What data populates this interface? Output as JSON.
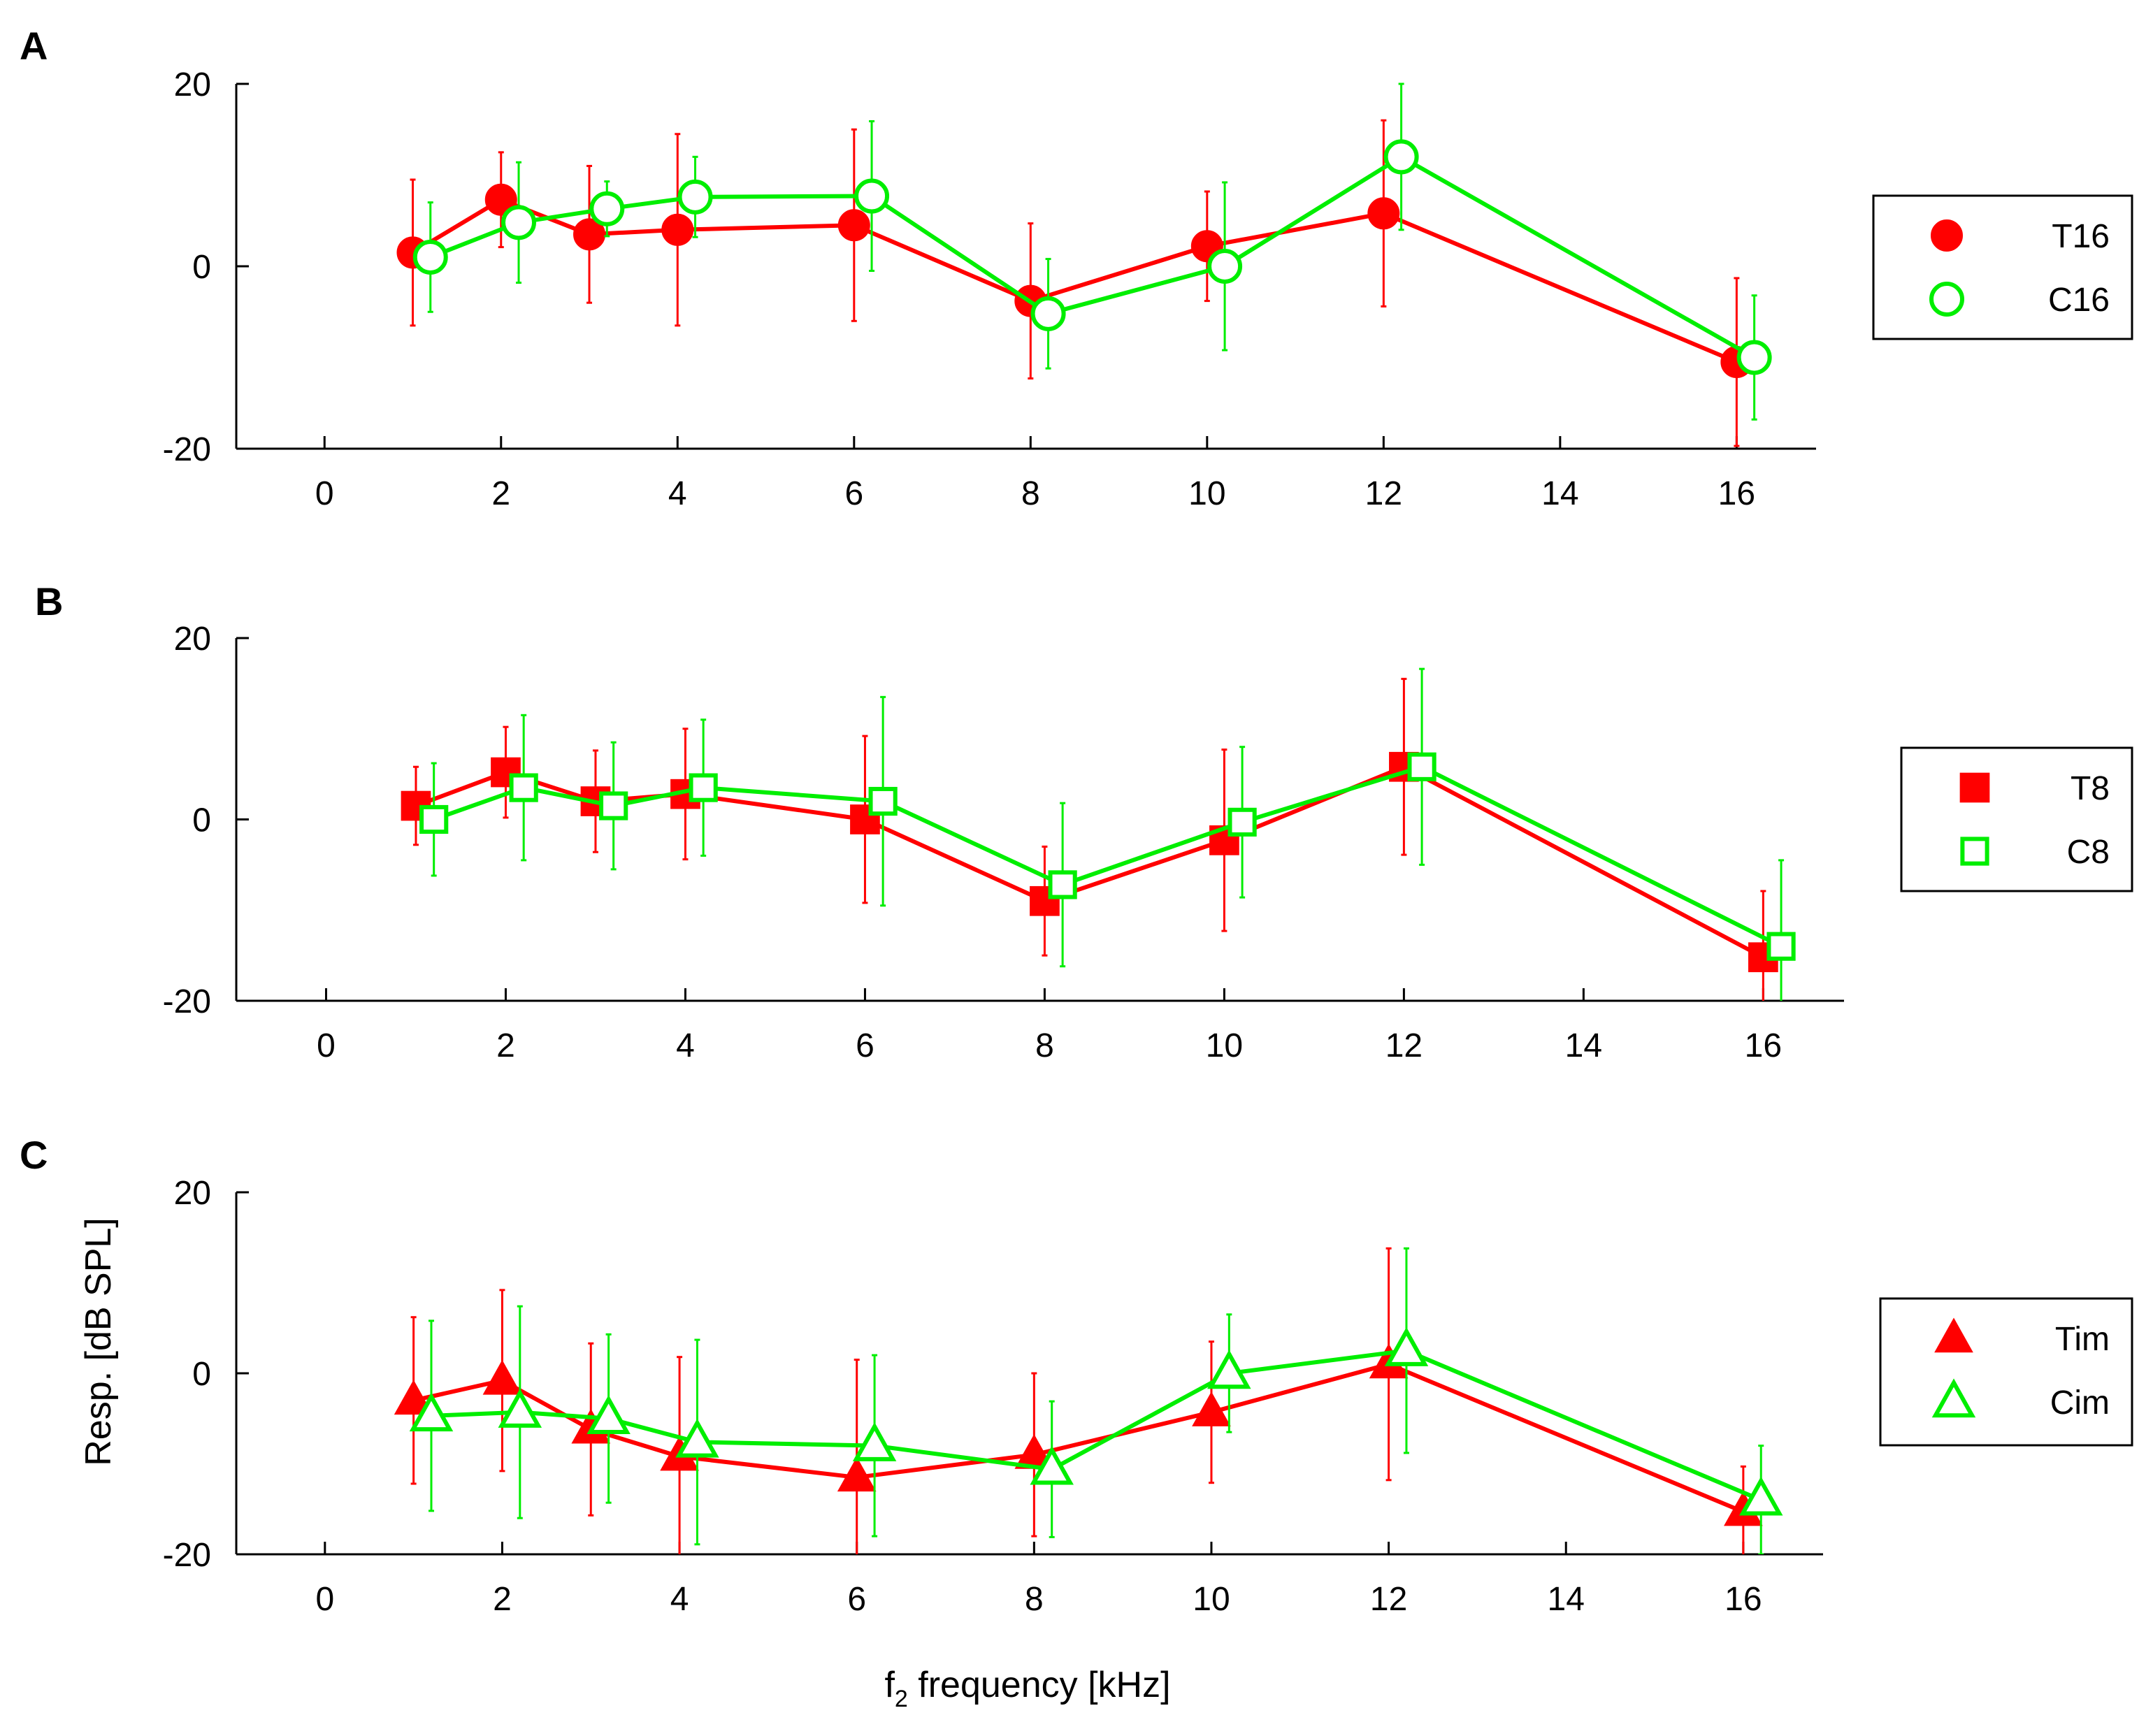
{
  "figure": {
    "xlabel_main": "f",
    "xlabel_sub": "2",
    "xlabel_rest": " frequency [kHz]",
    "ylabel": "Resp. [dB SPL]"
  },
  "colors": {
    "T": "#ff0000",
    "C": "#00ee00"
  },
  "chart_data": [
    {
      "panel": "A",
      "type": "line",
      "xlim": [
        -1,
        16.9
      ],
      "ylim": [
        -20,
        20
      ],
      "xticks": [
        0,
        2,
        4,
        6,
        8,
        10,
        12,
        14,
        16
      ],
      "xtick_labels": [
        "0",
        "2",
        "4",
        "6",
        "8",
        "10",
        "12",
        "14",
        "16"
      ],
      "yticks": [
        -20,
        0,
        20
      ],
      "ytick_labels": [
        "-20",
        "0",
        "20"
      ],
      "legend_position": "right",
      "series": [
        {
          "name": "T16",
          "color": "red",
          "marker": "circle",
          "filled": true,
          "x": [
            1,
            2,
            3,
            4,
            6,
            8,
            10,
            12,
            16
          ],
          "y": [
            1.5,
            7.3,
            3.5,
            4.0,
            4.5,
            -3.8,
            2.2,
            5.8,
            -10.5
          ],
          "err": [
            8.0,
            5.2,
            7.5,
            10.5,
            10.5,
            8.5,
            6.0,
            10.2,
            9.2
          ]
        },
        {
          "name": "C16",
          "color": "green",
          "marker": "circle",
          "filled": false,
          "x": [
            1.2,
            2.2,
            3.2,
            4.2,
            6.2,
            8.2,
            10.2,
            12.2,
            16.2
          ],
          "y": [
            1.0,
            4.8,
            6.3,
            7.6,
            7.7,
            -5.2,
            0.0,
            12.0,
            -10.0
          ],
          "err": [
            6.0,
            6.6,
            3.0,
            4.4,
            8.2,
            6.0,
            9.2,
            8.0,
            6.8
          ]
        }
      ]
    },
    {
      "panel": "B",
      "type": "line",
      "xlim": [
        -1,
        16.9
      ],
      "ylim": [
        -20,
        20
      ],
      "xticks": [
        0,
        2,
        4,
        6,
        8,
        10,
        12,
        14,
        16
      ],
      "xtick_labels": [
        "0",
        "2",
        "4",
        "6",
        "8",
        "10",
        "12",
        "14",
        "16"
      ],
      "yticks": [
        -20,
        0,
        20
      ],
      "ytick_labels": [
        "-20",
        "0",
        "20"
      ],
      "legend_position": "right",
      "series": [
        {
          "name": "T8",
          "color": "red",
          "marker": "square",
          "filled": true,
          "x": [
            1,
            2,
            3,
            4,
            6,
            8,
            10,
            12,
            16
          ],
          "y": [
            1.5,
            5.2,
            2.0,
            2.8,
            0.0,
            -9.0,
            -2.3,
            5.8,
            -15.2
          ],
          "err": [
            4.3,
            5.0,
            5.6,
            7.2,
            9.2,
            6.0,
            10.0,
            9.7,
            7.3
          ]
        },
        {
          "name": "C8",
          "color": "green",
          "marker": "square",
          "filled": false,
          "x": [
            1.2,
            2.2,
            3.2,
            4.2,
            6.2,
            8.2,
            10.2,
            12.2,
            16.2
          ],
          "y": [
            0.0,
            3.5,
            1.5,
            3.5,
            2.0,
            -7.2,
            -0.3,
            5.8,
            -14.0
          ],
          "err": [
            6.2,
            8.0,
            7.0,
            7.5,
            11.5,
            9.0,
            8.3,
            10.8,
            9.5
          ]
        }
      ]
    },
    {
      "panel": "C",
      "type": "line",
      "xlim": [
        -1,
        16.9
      ],
      "ylim": [
        -20,
        20
      ],
      "xticks": [
        0,
        2,
        4,
        6,
        8,
        10,
        12,
        14,
        16
      ],
      "xtick_labels": [
        "0",
        "2",
        "4",
        "6",
        "8",
        "10",
        "12",
        "14",
        "16"
      ],
      "yticks": [
        -20,
        0,
        20
      ],
      "ytick_labels": [
        "-20",
        "0",
        "20"
      ],
      "legend_position": "right",
      "series": [
        {
          "name": "Tim",
          "color": "red",
          "marker": "triangle",
          "filled": true,
          "x": [
            1,
            2,
            3,
            4,
            6,
            8,
            10,
            12,
            16
          ],
          "y": [
            -3.0,
            -0.8,
            -6.2,
            -9.2,
            -11.5,
            -9.0,
            -4.3,
            1.0,
            -15.3
          ],
          "err": [
            9.2,
            10.0,
            9.5,
            11.0,
            13.0,
            9.0,
            7.8,
            12.8,
            5.0
          ]
        },
        {
          "name": "Cim",
          "color": "green",
          "marker": "triangle",
          "filled": false,
          "x": [
            1.2,
            2.2,
            3.2,
            4.2,
            6.2,
            8.2,
            10.2,
            12.2,
            16.2
          ],
          "y": [
            -4.7,
            -4.3,
            -5.0,
            -7.6,
            -8.0,
            -10.6,
            0.0,
            2.5,
            -14.0
          ],
          "err": [
            10.5,
            11.7,
            9.3,
            11.3,
            10.0,
            7.5,
            6.5,
            11.3,
            6.0
          ]
        }
      ]
    }
  ]
}
